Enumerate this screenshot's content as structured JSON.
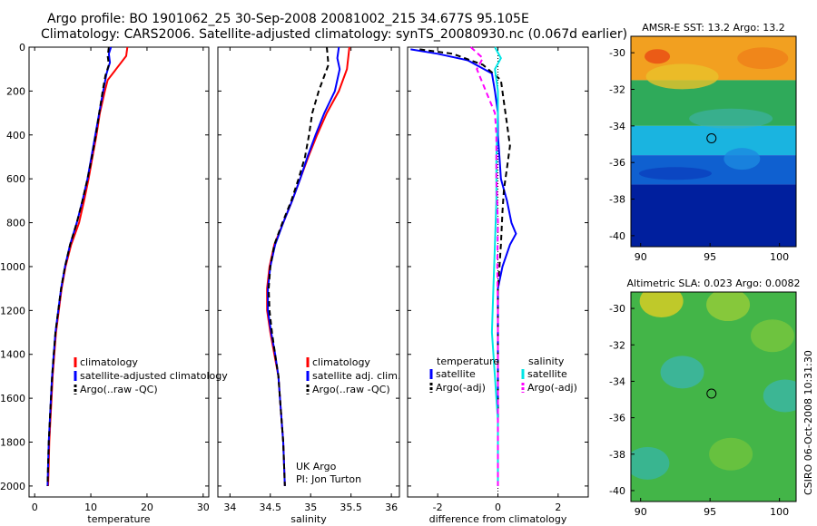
{
  "header": {
    "line1": "Argo profile: BO 1901062_25 30-Sep-2008 20081002_215 34.677S 95.105E",
    "line2": "Climatology: CARS2006. Satellite-adjusted climatology: synTS_20080930.nc (0.067d earlier)"
  },
  "side_label": "CSIRO 06-Oct-2008 10:31:30",
  "colors": {
    "climatology": "#ff0000",
    "satellite": "#0000ff",
    "argo": "#000000",
    "cyan": "#00e5e5",
    "magenta": "#ff00ff"
  },
  "chart_data": [
    {
      "type": "line",
      "xlabel": "temperature",
      "ylabel": "",
      "xlim": [
        -1,
        31
      ],
      "ylim": [
        2050,
        0
      ],
      "xticks": [
        0,
        10,
        20,
        30
      ],
      "yticks": [
        0,
        200,
        400,
        600,
        800,
        1000,
        1200,
        1400,
        1600,
        1800,
        2000
      ],
      "legend": [
        "climatology",
        "satellite-adjusted climatology",
        "Argo(..raw -QC)"
      ],
      "series": [
        {
          "name": "climatology",
          "color": "red",
          "dash": false,
          "points": [
            [
              16.5,
              0
            ],
            [
              16.3,
              40
            ],
            [
              14.5,
              100
            ],
            [
              13.0,
              150
            ],
            [
              12.5,
              200
            ],
            [
              11.6,
              300
            ],
            [
              11.0,
              400
            ],
            [
              10.3,
              500
            ],
            [
              9.6,
              600
            ],
            [
              8.8,
              700
            ],
            [
              7.9,
              800
            ],
            [
              6.5,
              900
            ],
            [
              5.5,
              1000
            ],
            [
              4.8,
              1100
            ],
            [
              4.3,
              1200
            ],
            [
              3.8,
              1300
            ],
            [
              3.5,
              1400
            ],
            [
              3.2,
              1500
            ],
            [
              3.0,
              1600
            ],
            [
              2.8,
              1700
            ],
            [
              2.6,
              1800
            ],
            [
              2.5,
              1900
            ],
            [
              2.4,
              2000
            ]
          ]
        },
        {
          "name": "satellite-adjusted climatology",
          "color": "blue",
          "dash": false,
          "points": [
            [
              13.6,
              0
            ],
            [
              13.2,
              30
            ],
            [
              13.4,
              70
            ],
            [
              12.8,
              120
            ],
            [
              12.2,
              200
            ],
            [
              11.5,
              300
            ],
            [
              10.8,
              400
            ],
            [
              10.1,
              500
            ],
            [
              9.4,
              600
            ],
            [
              8.5,
              700
            ],
            [
              7.5,
              800
            ],
            [
              6.3,
              900
            ],
            [
              5.4,
              1000
            ],
            [
              4.7,
              1100
            ],
            [
              4.2,
              1200
            ],
            [
              3.7,
              1300
            ],
            [
              3.4,
              1400
            ],
            [
              3.1,
              1500
            ],
            [
              2.9,
              1600
            ],
            [
              2.7,
              1700
            ],
            [
              2.5,
              1800
            ],
            [
              2.4,
              1900
            ],
            [
              2.3,
              2000
            ]
          ]
        },
        {
          "name": "Argo(..raw -QC)",
          "color": "black",
          "dash": true,
          "points": [
            [
              13.2,
              0
            ],
            [
              13.0,
              40
            ],
            [
              13.2,
              80
            ],
            [
              12.6,
              130
            ],
            [
              12.1,
              200
            ],
            [
              11.5,
              300
            ],
            [
              10.9,
              400
            ],
            [
              10.2,
              500
            ],
            [
              9.4,
              600
            ],
            [
              8.5,
              700
            ],
            [
              7.5,
              800
            ],
            [
              6.3,
              900
            ],
            [
              5.4,
              1000
            ],
            [
              4.7,
              1100
            ],
            [
              4.2,
              1200
            ],
            [
              3.7,
              1300
            ],
            [
              3.4,
              1400
            ],
            [
              3.1,
              1500
            ],
            [
              2.9,
              1600
            ],
            [
              2.7,
              1700
            ],
            [
              2.5,
              1800
            ],
            [
              2.4,
              1900
            ],
            [
              2.3,
              2000
            ]
          ]
        }
      ]
    },
    {
      "type": "line",
      "xlabel": "salinity",
      "ylabel": "",
      "xlim": [
        33.85,
        36.1
      ],
      "ylim": [
        2050,
        0
      ],
      "xticks": [
        34,
        34.5,
        35,
        35.5,
        36
      ],
      "xtick_labels": [
        "34",
        "34.5",
        "35",
        "35.5",
        "36"
      ],
      "legend": [
        "climatology",
        "satellite adj. clim.",
        "Argo(..raw -QC)"
      ],
      "annotation": [
        "UK Argo",
        "PI: Jon Turton"
      ],
      "series": [
        {
          "name": "climatology",
          "color": "red",
          "dash": false,
          "points": [
            [
              35.48,
              0
            ],
            [
              35.45,
              100
            ],
            [
              35.35,
              200
            ],
            [
              35.2,
              300
            ],
            [
              35.08,
              400
            ],
            [
              34.97,
              500
            ],
            [
              34.87,
              600
            ],
            [
              34.77,
              700
            ],
            [
              34.66,
              800
            ],
            [
              34.55,
              900
            ],
            [
              34.49,
              1000
            ],
            [
              34.46,
              1100
            ],
            [
              34.46,
              1200
            ],
            [
              34.5,
              1300
            ],
            [
              34.55,
              1400
            ],
            [
              34.6,
              1500
            ],
            [
              34.62,
              1600
            ],
            [
              34.64,
              1700
            ],
            [
              34.66,
              1800
            ],
            [
              34.67,
              1900
            ],
            [
              34.68,
              2000
            ]
          ]
        },
        {
          "name": "satellite adj. clim.",
          "color": "blue",
          "dash": false,
          "points": [
            [
              35.35,
              0
            ],
            [
              35.33,
              50
            ],
            [
              35.36,
              100
            ],
            [
              35.3,
              200
            ],
            [
              35.17,
              300
            ],
            [
              35.06,
              400
            ],
            [
              34.96,
              500
            ],
            [
              34.87,
              600
            ],
            [
              34.77,
              700
            ],
            [
              34.66,
              800
            ],
            [
              34.56,
              900
            ],
            [
              34.5,
              1000
            ],
            [
              34.47,
              1100
            ],
            [
              34.47,
              1200
            ],
            [
              34.51,
              1300
            ],
            [
              34.56,
              1400
            ],
            [
              34.6,
              1500
            ],
            [
              34.62,
              1600
            ],
            [
              34.64,
              1700
            ],
            [
              34.66,
              1800
            ],
            [
              34.67,
              1900
            ],
            [
              34.68,
              2000
            ]
          ]
        },
        {
          "name": "Argo(..raw -QC)",
          "color": "black",
          "dash": true,
          "points": [
            [
              35.2,
              0
            ],
            [
              35.22,
              80
            ],
            [
              35.1,
              200
            ],
            [
              35.02,
              300
            ],
            [
              34.98,
              400
            ],
            [
              34.93,
              500
            ],
            [
              34.85,
              600
            ],
            [
              34.76,
              700
            ],
            [
              34.65,
              800
            ],
            [
              34.55,
              900
            ],
            [
              34.5,
              1000
            ],
            [
              34.48,
              1100
            ],
            [
              34.49,
              1200
            ],
            [
              34.52,
              1300
            ],
            [
              34.56,
              1400
            ],
            [
              34.6,
              1500
            ],
            [
              34.62,
              1600
            ],
            [
              34.64,
              1700
            ],
            [
              34.66,
              1800
            ],
            [
              34.67,
              1900
            ],
            [
              34.68,
              2000
            ]
          ]
        }
      ]
    },
    {
      "type": "line",
      "xlabel": "difference from climatology",
      "ylabel": "",
      "xlim": [
        -3,
        3
      ],
      "ylim": [
        2050,
        0
      ],
      "xticks": [
        -2,
        0,
        2
      ],
      "legend_left_title": "temperature",
      "legend_right_title": "salinity",
      "legend": [
        "satellite",
        "Argo(-adj)",
        "satellite",
        "Argo(-adj)"
      ],
      "series": [
        {
          "name": "temperature satellite",
          "color": "blue",
          "dash": false,
          "points": [
            [
              -2.9,
              10
            ],
            [
              -2.0,
              30
            ],
            [
              -1.0,
              60
            ],
            [
              -0.2,
              120
            ],
            [
              -0.1,
              200
            ],
            [
              0,
              300
            ],
            [
              0,
              400
            ],
            [
              0.05,
              500
            ],
            [
              0.1,
              600
            ],
            [
              0.3,
              700
            ],
            [
              0.45,
              800
            ],
            [
              0.6,
              850
            ],
            [
              0.4,
              900
            ],
            [
              0.15,
              1000
            ],
            [
              0,
              1100
            ],
            [
              0,
              1200
            ],
            [
              0,
              1300
            ],
            [
              0,
              1500
            ],
            [
              0,
              1700
            ],
            [
              0,
              1900
            ],
            [
              0,
              2000
            ]
          ]
        },
        {
          "name": "temperature Argo(-adj)",
          "color": "black",
          "dash": true,
          "points": [
            [
              -2.6,
              10
            ],
            [
              -1.5,
              30
            ],
            [
              -0.5,
              80
            ],
            [
              0.1,
              150
            ],
            [
              0.2,
              250
            ],
            [
              0.3,
              350
            ],
            [
              0.4,
              450
            ],
            [
              0.3,
              550
            ],
            [
              0.2,
              650
            ],
            [
              0.15,
              750
            ],
            [
              0.1,
              900
            ],
            [
              0.05,
              1000
            ],
            [
              0,
              1100
            ],
            [
              0,
              1300
            ],
            [
              0,
              1500
            ],
            [
              0,
              1700
            ],
            [
              0,
              2000
            ]
          ]
        },
        {
          "name": "salinity satellite",
          "color": "cyan",
          "dash": false,
          "points": [
            [
              -0.1,
              0
            ],
            [
              0.1,
              50
            ],
            [
              -0.1,
              100
            ],
            [
              0,
              200
            ],
            [
              0,
              300
            ],
            [
              -0.05,
              500
            ],
            [
              -0.05,
              700
            ],
            [
              -0.1,
              900
            ],
            [
              -0.15,
              1100
            ],
            [
              -0.2,
              1300
            ],
            [
              -0.1,
              1500
            ],
            [
              -0.05,
              1600
            ],
            [
              0,
              1700
            ],
            [
              0,
              2000
            ]
          ]
        },
        {
          "name": "salinity Argo(-adj)",
          "color": "magenta",
          "dash": true,
          "points": [
            [
              -0.9,
              0
            ],
            [
              -0.5,
              50
            ],
            [
              -0.7,
              100
            ],
            [
              -0.4,
              200
            ],
            [
              -0.1,
              300
            ],
            [
              -0.05,
              400
            ],
            [
              -0.05,
              600
            ],
            [
              0,
              800
            ],
            [
              -0.02,
              1000
            ],
            [
              0,
              1200
            ],
            [
              0,
              1400
            ],
            [
              0,
              1600
            ],
            [
              0,
              1800
            ],
            [
              0,
              2000
            ]
          ]
        }
      ]
    },
    {
      "type": "heatmap",
      "title": "AMSR-E SST: 13.2 Argo: 13.2",
      "xlim": [
        89.3,
        101.2
      ],
      "ylim": [
        -40.6,
        -29.1
      ],
      "xticks": [
        90,
        95,
        100
      ],
      "yticks": [
        -30,
        -32,
        -34,
        -36,
        -38,
        -40
      ],
      "marker": [
        95.105,
        -34.677
      ],
      "bands": [
        {
          "from_lat": -29.1,
          "to_lat": -31.5,
          "color": "#f2a020"
        },
        {
          "from_lat": -31.5,
          "to_lat": -34,
          "color": "#2faa5a"
        },
        {
          "from_lat": -34,
          "to_lat": -35.6,
          "color": "#1ab4e0"
        },
        {
          "from_lat": -35.6,
          "to_lat": -37.2,
          "color": "#0f60d0"
        },
        {
          "from_lat": -37.2,
          "to_lat": -40.6,
          "color": "#001f9e"
        }
      ]
    },
    {
      "type": "heatmap",
      "title": "Altimetric SLA: 0.023 Argo: 0.0082",
      "xlim": [
        89.3,
        101.2
      ],
      "ylim": [
        -40.6,
        -29.1
      ],
      "xticks": [
        90,
        95,
        100
      ],
      "yticks": [
        -30,
        -32,
        -34,
        -36,
        -38,
        -40
      ],
      "marker": [
        95.105,
        -34.677
      ],
      "base_color": "#43b548",
      "patches": [
        {
          "lon": 91.5,
          "lat": -29.6,
          "color": "#e8d020"
        },
        {
          "lon": 96.3,
          "lat": -29.8,
          "color": "#9ccf37"
        },
        {
          "lon": 93.0,
          "lat": -33.5,
          "color": "#3ab6b2"
        },
        {
          "lon": 99.5,
          "lat": -31.5,
          "color": "#7cc83c"
        },
        {
          "lon": 90.5,
          "lat": -38.5,
          "color": "#35b5a8"
        },
        {
          "lon": 100.4,
          "lat": -34.8,
          "color": "#39b7ad"
        },
        {
          "lon": 96.5,
          "lat": -38.0,
          "color": "#73c63c"
        }
      ]
    }
  ]
}
